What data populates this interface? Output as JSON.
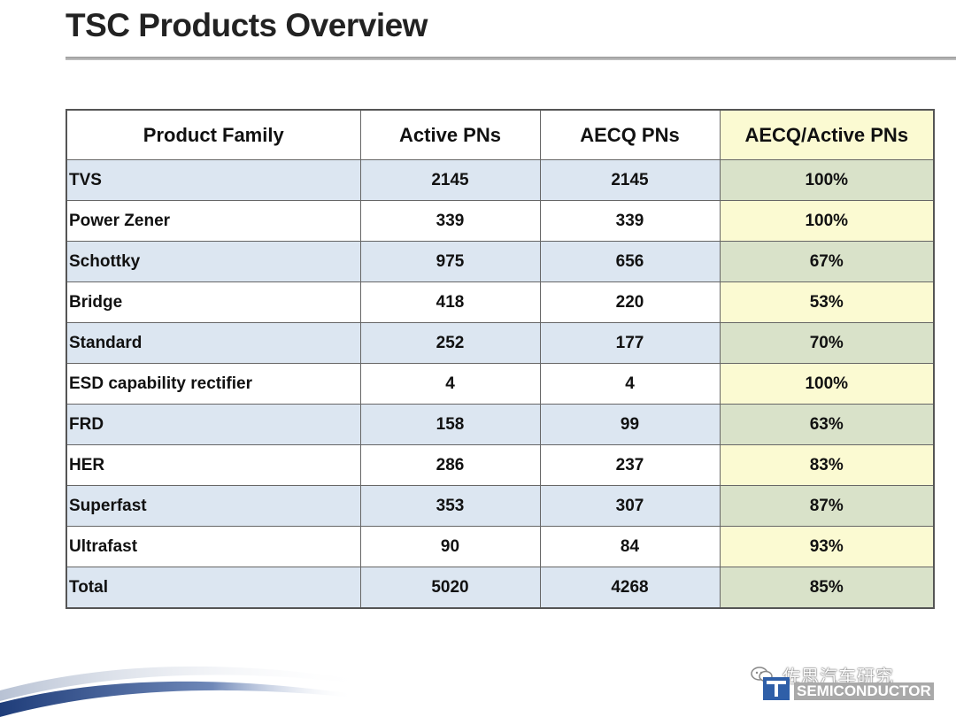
{
  "page": {
    "title": "TSC Products Overview"
  },
  "table": {
    "headers": [
      "Product Family",
      "Active PNs",
      "AECQ PNs",
      "AECQ/Active PNs"
    ],
    "rows": [
      {
        "family": "TVS",
        "active": "2145",
        "aecq": "2145",
        "ratio": "100%"
      },
      {
        "family": "Power Zener",
        "active": "339",
        "aecq": "339",
        "ratio": "100%"
      },
      {
        "family": "Schottky",
        "active": "975",
        "aecq": "656",
        "ratio": "67%"
      },
      {
        "family": "Bridge",
        "active": "418",
        "aecq": "220",
        "ratio": "53%"
      },
      {
        "family": "Standard",
        "active": "252",
        "aecq": "177",
        "ratio": "70%"
      },
      {
        "family": "ESD capability rectifier",
        "active": "4",
        "aecq": "4",
        "ratio": "100%"
      },
      {
        "family": "FRD",
        "active": "158",
        "aecq": "99",
        "ratio": "63%"
      },
      {
        "family": "HER",
        "active": "286",
        "aecq": "237",
        "ratio": "83%"
      },
      {
        "family": "Superfast",
        "active": "353",
        "aecq": "307",
        "ratio": "87%"
      },
      {
        "family": "Ultrafast",
        "active": "90",
        "aecq": "84",
        "ratio": "93%"
      },
      {
        "family": "Total",
        "active": "5020",
        "aecq": "4268",
        "ratio": "85%"
      }
    ]
  },
  "footer": {
    "watermark_text": "佐思汽车研究",
    "logo_text": "SEMICONDUCTOR",
    "watermark_icon": "wechat-icon",
    "logo_icon": "tsc-logo-icon"
  },
  "colors": {
    "row_shade": "#dce6f1",
    "ratio_shade": "#d9e2c9",
    "ratio_plain": "#fbfad2"
  }
}
